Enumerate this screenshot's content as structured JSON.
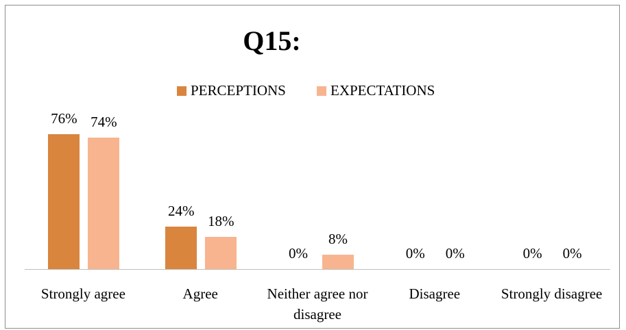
{
  "chart_data": {
    "type": "bar",
    "title": "Q15:",
    "categories": [
      "Strongly agree",
      "Agree",
      "Neither agree nor disagree",
      "Disagree",
      "Strongly disagree"
    ],
    "series": [
      {
        "name": "PERCEPTIONS",
        "color": "#d9853e",
        "values": [
          76,
          24,
          0,
          0,
          0
        ],
        "value_labels": [
          "76%",
          "24%",
          "0%",
          "0%",
          "0%"
        ]
      },
      {
        "name": "EXPECTATIONS",
        "color": "#f8b48f",
        "values": [
          74,
          18,
          8,
          0,
          0
        ],
        "value_labels": [
          "74%",
          "18%",
          "8%",
          "0%",
          "0%"
        ]
      }
    ],
    "legend": "top"
  }
}
